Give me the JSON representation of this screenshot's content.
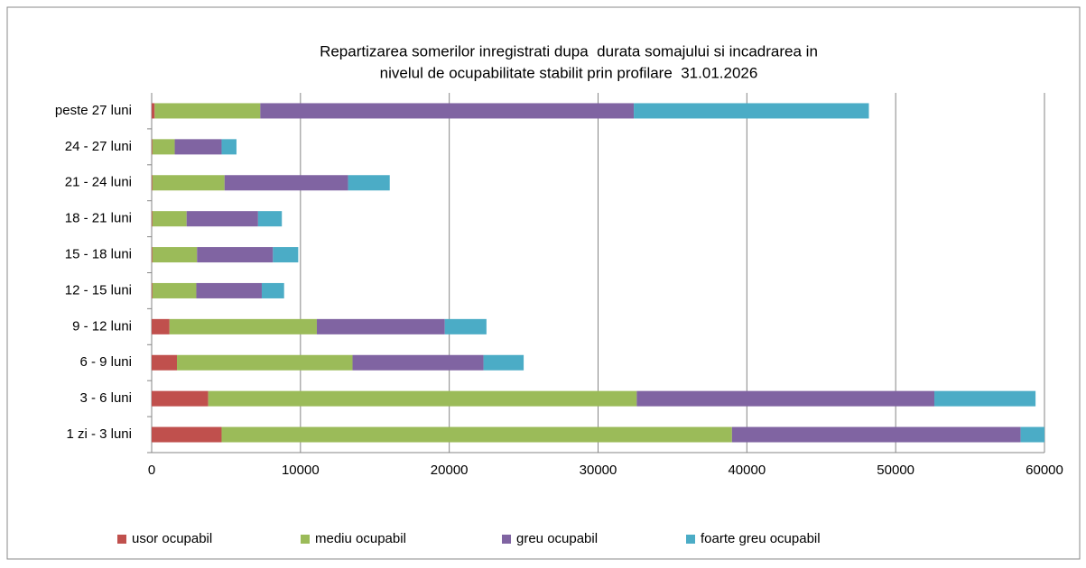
{
  "chart_data": {
    "type": "bar",
    "orientation": "horizontal",
    "stacked": true,
    "title": [
      "Repartizarea somerilor inregistrati dupa  durata somajului si incadrarea in",
      "nivelul de ocupabilitate stabilit prin profilare  31.01.2026"
    ],
    "categories": [
      "1 zi - 3 luni",
      "3 - 6 luni",
      "6 - 9 luni",
      "9 - 12 luni",
      "12 - 15 luni",
      "15 - 18 luni",
      "18 - 21 luni",
      "21 - 24 luni",
      "24 - 27 luni",
      "peste 27 luni"
    ],
    "series": [
      {
        "name": "usor ocupabil",
        "color": "#c0504d",
        "values": [
          4700,
          3800,
          1700,
          1200,
          50,
          50,
          50,
          50,
          50,
          200
        ]
      },
      {
        "name": "mediu ocupabil",
        "color": "#9bbb59",
        "values": [
          34300,
          28800,
          11800,
          9900,
          2950,
          3000,
          2300,
          4850,
          1500,
          7100
        ]
      },
      {
        "name": "greu ocupabil",
        "color": "#8064a2",
        "values": [
          19400,
          20000,
          8800,
          8600,
          4400,
          5100,
          4800,
          8300,
          3150,
          25100
        ]
      },
      {
        "name": "foarte greu ocupabil",
        "color": "#4bacc6",
        "values": [
          1900,
          6800,
          2700,
          2800,
          1500,
          1700,
          1600,
          2800,
          1000,
          15800
        ]
      }
    ],
    "xlim": [
      0,
      60000
    ],
    "xticks": [
      0,
      10000,
      20000,
      30000,
      40000,
      50000,
      60000
    ],
    "grid": true,
    "legend": "bottom"
  }
}
